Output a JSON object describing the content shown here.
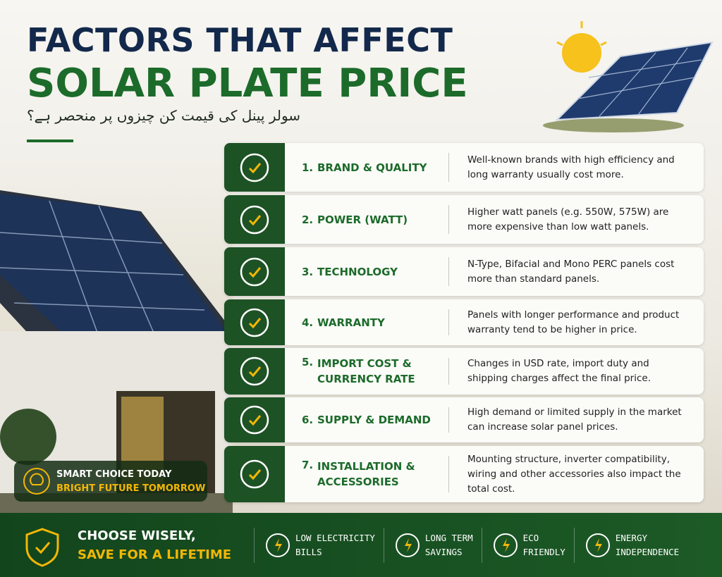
{
  "header": {
    "title_line1": "FACTORS THAT AFFECT",
    "title_line2": "SOLAR PLATE PRICE",
    "subtitle_urdu": "سولر پینل کی قیمت کن چیزوں پر منحصر ہے؟"
  },
  "factors": [
    {
      "number": "1.",
      "title_lines": [
        "BRAND & QUALITY"
      ],
      "description": "Well-known brands with high efficiency and long warranty usually cost more."
    },
    {
      "number": "2.",
      "title_lines": [
        "POWER (WATT)"
      ],
      "description": "Higher watt panels (e.g. 550W, 575W) are more expensive than low watt panels."
    },
    {
      "number": "3.",
      "title_lines": [
        "TECHNOLOGY"
      ],
      "description": "N-Type, Bifacial and Mono PERC panels cost more than standard panels."
    },
    {
      "number": "4.",
      "title_lines": [
        "WARRANTY"
      ],
      "description": "Panels with longer performance and product warranty tend to be higher in price."
    },
    {
      "number": "5.",
      "title_lines": [
        "IMPORT COST &",
        "CURRENCY RATE"
      ],
      "description": "Changes in USD rate, import duty and shipping charges affect the final price."
    },
    {
      "number": "6.",
      "title_lines": [
        "SUPPLY & DEMAND"
      ],
      "description": "High demand or limited supply in the market can increase solar panel prices."
    },
    {
      "number": "7.",
      "title_lines": [
        "INSTALLATION &",
        "ACCESSORIES"
      ],
      "description": "Mounting structure, inverter compatibility, wiring and other accessories also impact the total cost."
    }
  ],
  "badge": {
    "line1": "SMART CHOICE TODAY",
    "line2": "BRIGHT FUTURE TOMORROW"
  },
  "footer": {
    "slogan_line1": "CHOOSE WISELY,",
    "slogan_line2": "SAVE FOR A LIFETIME",
    "benefits": [
      {
        "line1": "LOW ELECTRICITY",
        "line2": "BILLS"
      },
      {
        "line1": "LONG TERM",
        "line2": "SAVINGS"
      },
      {
        "line1": "ECO",
        "line2": "FRIENDLY"
      },
      {
        "line1": "ENERGY",
        "line2": "INDEPENDENCE"
      }
    ]
  }
}
